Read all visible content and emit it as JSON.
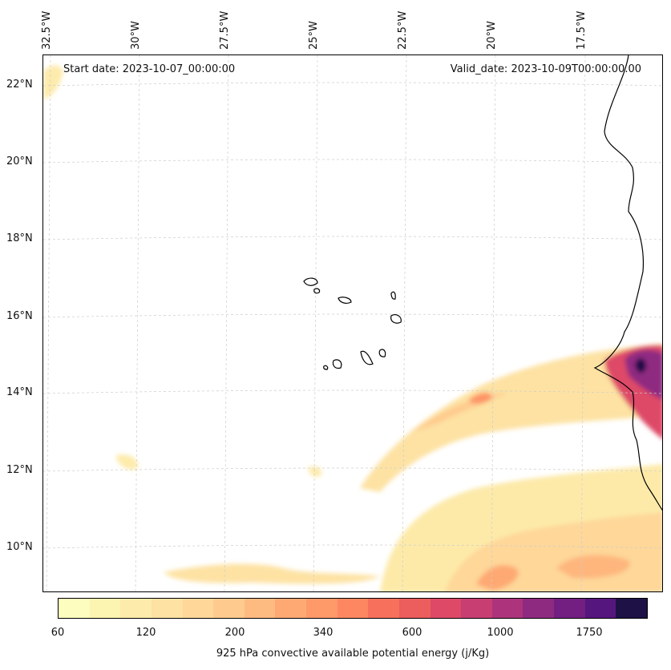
{
  "start_date": "Start date: 2023-10-07_00:00:00",
  "valid_date": "Valid_date: 2023-10-09T00:00:00.00",
  "lon_labels": [
    "32.5°W",
    "30°W",
    "27.5°W",
    "25°W",
    "22.5°W",
    "20°W",
    "17.5°W"
  ],
  "lat_labels": [
    "22°N",
    "20°N",
    "18°N",
    "16°N",
    "14°N",
    "12°N",
    "10°N"
  ],
  "colorbar": {
    "title": "925 hPa convective available potential energy (j/Kg)",
    "tick_labels": [
      "60",
      "120",
      "200",
      "340",
      "600",
      "1000",
      "1750"
    ],
    "colors": [
      "#fcfdbf",
      "#fcf4b1",
      "#fdebab",
      "#fde2a3",
      "#fed799",
      "#feca8d",
      "#febb81",
      "#fea973",
      "#fe9969",
      "#fc8761",
      "#f7705c",
      "#ec5d5d",
      "#de4968",
      "#c83e73",
      "#ad347c",
      "#8f2a81",
      "#721f81",
      "#55167e",
      "#1e1146"
    ]
  },
  "map": {
    "extent": {
      "lon_min": -33.0,
      "lon_max": -15.6,
      "lat_min": 8.9,
      "lat_max": 22.8
    },
    "gridlines": true
  }
}
